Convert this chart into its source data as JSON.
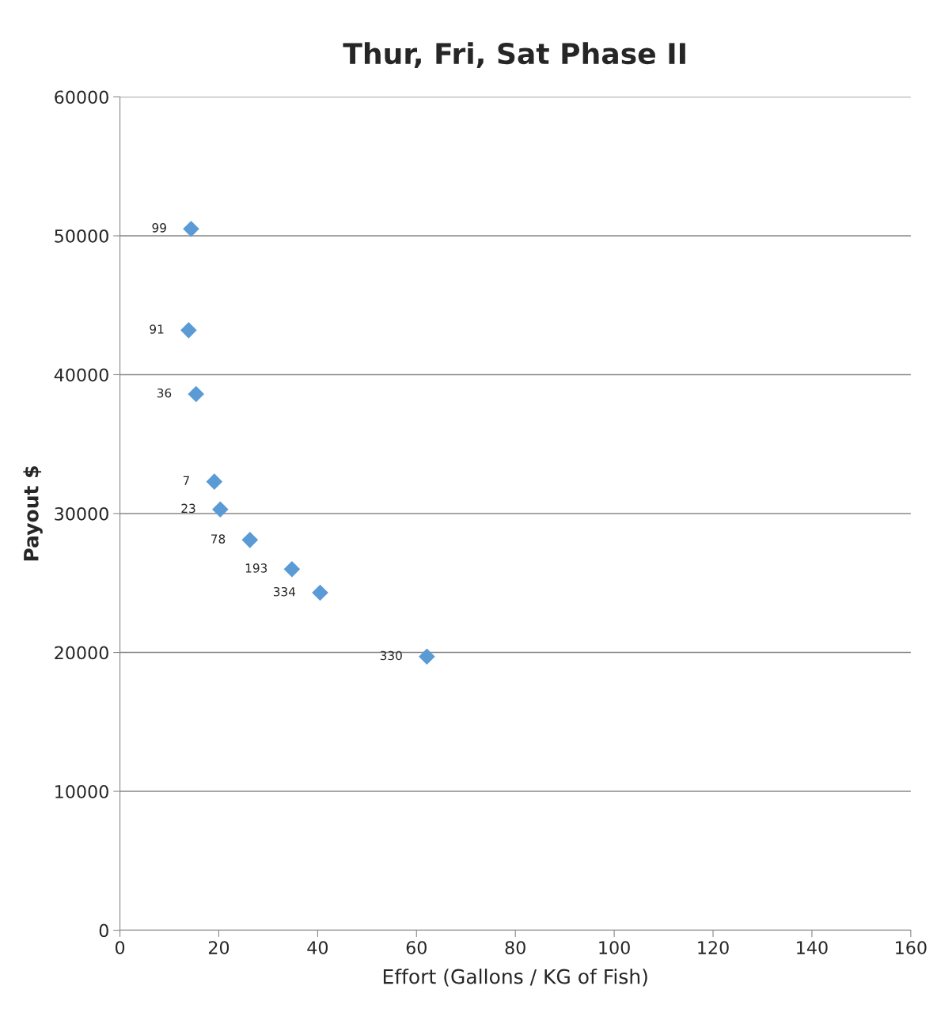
{
  "chart_data": {
    "type": "scatter",
    "title": "Thur, Fri, Sat Phase II",
    "xlabel": "Effort (Gallons / KG of Fish)",
    "ylabel": "Payout $",
    "x": [
      14.4,
      13.9,
      15.4,
      19.1,
      20.3,
      26.3,
      34.8,
      40.5,
      62.1
    ],
    "values": [
      50500,
      43200,
      38600,
      32300,
      30300,
      28100,
      26000,
      24300,
      19700
    ],
    "color": "#5b9bd5",
    "marker": "diamond",
    "xlim": [
      0,
      160
    ],
    "xticks": [
      0,
      20,
      40,
      60,
      80,
      100,
      120,
      140,
      160
    ],
    "ylim": [
      0,
      60000
    ],
    "yticks": [
      0,
      10000,
      20000,
      30000,
      40000,
      50000,
      60000
    ],
    "grid": "y",
    "legend": false,
    "annotations": [
      {
        "text": "99",
        "x": 14.4,
        "y": 50500
      },
      {
        "text": "91",
        "x": 13.9,
        "y": 43200
      },
      {
        "text": "36",
        "x": 15.4,
        "y": 38600
      },
      {
        "text": "7",
        "x": 19.1,
        "y": 32300
      },
      {
        "text": "23",
        "x": 20.3,
        "y": 30300
      },
      {
        "text": "78",
        "x": 26.3,
        "y": 28100
      },
      {
        "text": "193",
        "x": 34.8,
        "y": 26000
      },
      {
        "text": "334",
        "x": 40.5,
        "y": 24300
      },
      {
        "text": "330",
        "x": 62.1,
        "y": 19700
      }
    ]
  }
}
